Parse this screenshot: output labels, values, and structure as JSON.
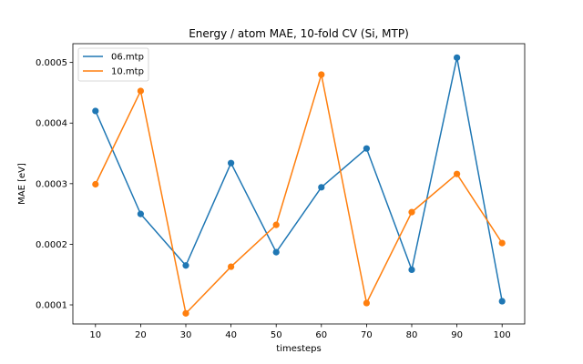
{
  "chart_data": {
    "type": "line",
    "title": "Energy / atom MAE, 10-fold CV (Si, MTP)",
    "xlabel": "timesteps",
    "ylabel": "MAE [eV]",
    "x": [
      10,
      20,
      30,
      40,
      50,
      60,
      70,
      80,
      90,
      100
    ],
    "xlim": [
      5,
      105
    ],
    "ylim": [
      6.85e-05,
      0.000531
    ],
    "x_ticks": [
      10,
      20,
      30,
      40,
      50,
      60,
      70,
      80,
      90,
      100
    ],
    "y_ticks": [
      0.0001,
      0.0002,
      0.0003,
      0.0004,
      0.0005
    ],
    "y_tick_labels": [
      "0.0001",
      "0.0002",
      "0.0003",
      "0.0004",
      "0.0005"
    ],
    "grid": false,
    "legend_position": "top-left",
    "series": [
      {
        "name": "06.mtp",
        "color": "#1f77b4",
        "values": [
          0.00042,
          0.00025,
          0.000165,
          0.000334,
          0.000187,
          0.000294,
          0.000358,
          0.000158,
          0.000508,
          0.000106
        ]
      },
      {
        "name": "10.mtp",
        "color": "#ff7f0e",
        "values": [
          0.000299,
          0.000453,
          8.6e-05,
          0.000163,
          0.000232,
          0.00048,
          0.000103,
          0.000253,
          0.000316,
          0.000202
        ]
      }
    ]
  }
}
